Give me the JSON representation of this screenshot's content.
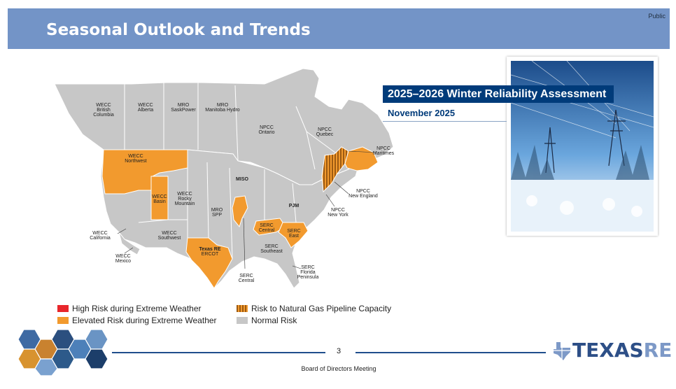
{
  "header": {
    "title": "Seasonal Outlook and Trends",
    "classification": "Public"
  },
  "report": {
    "title": "2025–2026 Winter Reliability Assessment",
    "date": "November 2025"
  },
  "map": {
    "regions": [
      {
        "line1": "WECC",
        "line2": "British",
        "line3": "Columbia"
      },
      {
        "line1": "WECC",
        "line2": "Alberta"
      },
      {
        "line1": "MRO",
        "line2": "SaskPower"
      },
      {
        "line1": "MRO",
        "line2": "Manitoba Hydro"
      },
      {
        "line1": "NPCC",
        "line2": "Ontario"
      },
      {
        "line1": "NPCC",
        "line2": "Quebec"
      },
      {
        "line1": "NPCC",
        "line2": "Maritimes"
      },
      {
        "line1": "WECC",
        "line2": "Northwest"
      },
      {
        "line1": "MISO"
      },
      {
        "line1": "NPCC",
        "line2": "New England"
      },
      {
        "line1": "WECC",
        "line2": "Basin"
      },
      {
        "line1": "WECC",
        "line2": "Rocky",
        "line3": "Mountain"
      },
      {
        "line1": "MRO",
        "line2": "SPP"
      },
      {
        "line1": "PJM"
      },
      {
        "line1": "NPCC",
        "line2": "New York"
      },
      {
        "line1": "WECC",
        "line2": "California"
      },
      {
        "line1": "WECC",
        "line2": "Southwest"
      },
      {
        "line1": "SERC",
        "line2": "Central"
      },
      {
        "line1": "SERC",
        "line2": "East"
      },
      {
        "line1": "SERC",
        "line2": "Southeast"
      },
      {
        "line1": "WECC",
        "line2": "Mexico"
      },
      {
        "line1": "Texas RE",
        "line2": "ERCOT"
      },
      {
        "line1": "SERC",
        "line2": "Central"
      },
      {
        "line1": "SERC",
        "line2": "Florida",
        "line3": "Peninsula"
      }
    ],
    "colors": {
      "normal": "#c7c7c7",
      "elevated": "#f29a2e",
      "high": "#e8262b",
      "gas": "#d77a1c",
      "border": "#ffffff"
    }
  },
  "legend": {
    "high": "High Risk during Extreme Weather",
    "elevated": "Elevated Risk during Extreme Weather",
    "gas": "Risk to Natural Gas Pipeline Capacity",
    "normal": "Normal Risk"
  },
  "footer": {
    "page": "3",
    "meeting": "Board of Directors Meeting"
  },
  "logo": {
    "name_main": "TEXAS",
    "name_suffix": "RE"
  }
}
